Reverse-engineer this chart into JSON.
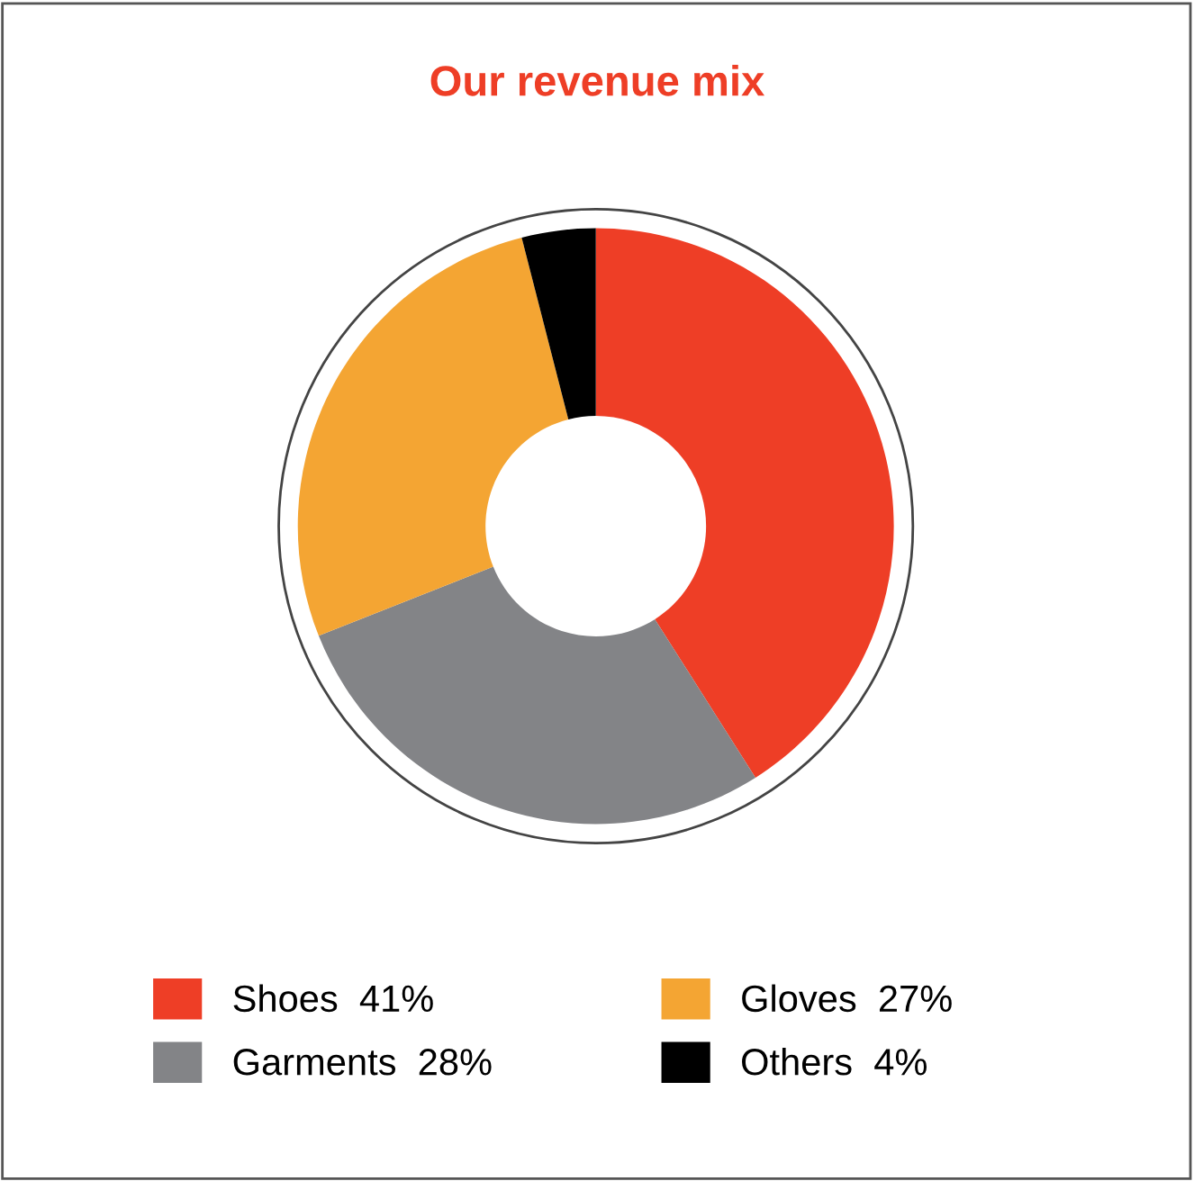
{
  "chart_data": {
    "type": "donut",
    "title": "Our revenue mix",
    "categories": [
      "Shoes",
      "Garments",
      "Gloves",
      "Others"
    ],
    "values": [
      41,
      28,
      27,
      4
    ],
    "value_labels": [
      "41%",
      "28%",
      "27%",
      "4%"
    ],
    "colors": [
      "#ee3e26",
      "#838487",
      "#f4a533",
      "#000000"
    ],
    "legend": "bottom"
  }
}
